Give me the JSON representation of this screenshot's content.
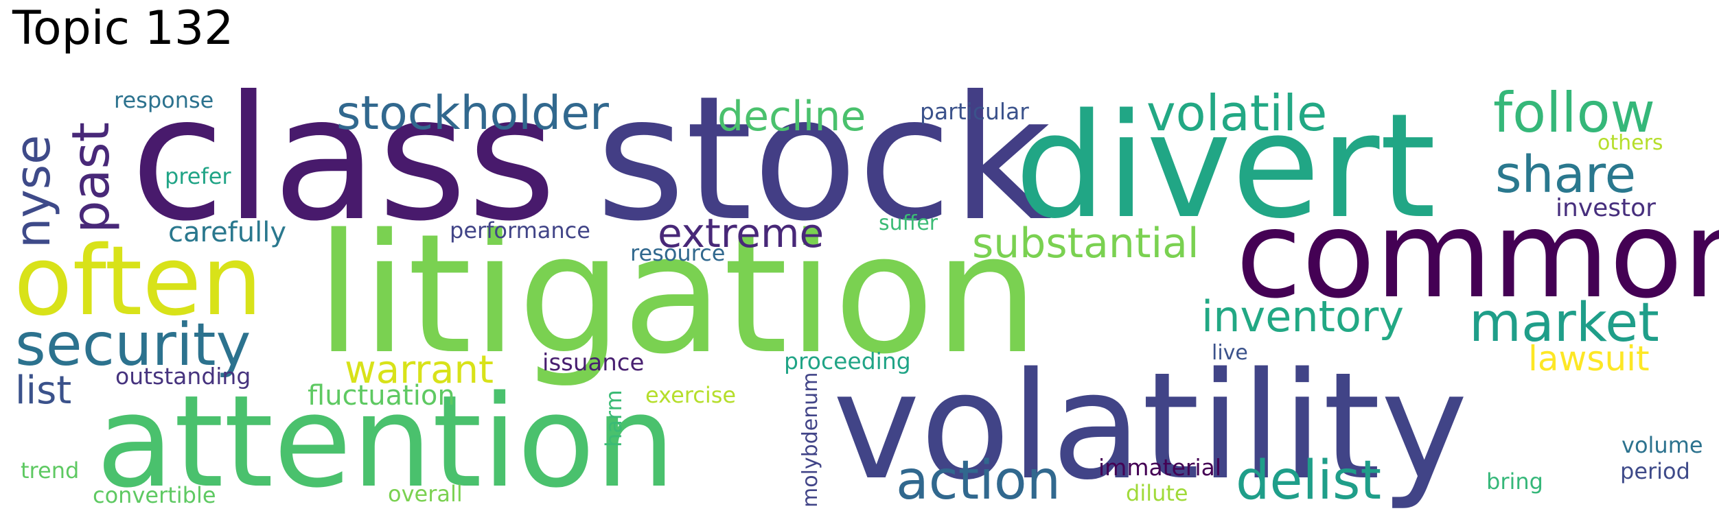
{
  "title": "Topic 132",
  "words": [
    {
      "text": "class",
      "color": "#481a6c"
    },
    {
      "text": "stock",
      "color": "#433e85"
    },
    {
      "text": "divert",
      "color": "#21a685"
    },
    {
      "text": "common",
      "color": "#440154"
    },
    {
      "text": "litigation",
      "color": "#7ad151"
    },
    {
      "text": "often",
      "color": "#d8e219"
    },
    {
      "text": "volatility",
      "color": "#414487"
    },
    {
      "text": "attention",
      "color": "#4ac16d"
    },
    {
      "text": "stockholder",
      "color": "#31688e"
    },
    {
      "text": "volatile",
      "color": "#22a884"
    },
    {
      "text": "follow",
      "color": "#35b779"
    },
    {
      "text": "decline",
      "color": "#4ac16d"
    },
    {
      "text": "share",
      "color": "#2a788e"
    },
    {
      "text": "past",
      "color": "#482878"
    },
    {
      "text": "nyse",
      "color": "#3e4a89"
    },
    {
      "text": "extreme",
      "color": "#482878"
    },
    {
      "text": "substantial",
      "color": "#7ad151"
    },
    {
      "text": "security",
      "color": "#2c728e"
    },
    {
      "text": "inventory",
      "color": "#22a884"
    },
    {
      "text": "market",
      "color": "#1f9e89"
    },
    {
      "text": "action",
      "color": "#31688e"
    },
    {
      "text": "delist",
      "color": "#1f9e89"
    },
    {
      "text": "warrant",
      "color": "#d8e219"
    },
    {
      "text": "lawsuit",
      "color": "#fde725"
    },
    {
      "text": "list",
      "color": "#3b528b"
    },
    {
      "text": "fluctuation",
      "color": "#5ec962"
    },
    {
      "text": "carefully",
      "color": "#2a788e"
    },
    {
      "text": "investor",
      "color": "#472f7d"
    },
    {
      "text": "response",
      "color": "#2c728e"
    },
    {
      "text": "prefer",
      "color": "#20a486"
    },
    {
      "text": "particular",
      "color": "#3b528b"
    },
    {
      "text": "others",
      "color": "#b5de2b"
    },
    {
      "text": "performance",
      "color": "#414487"
    },
    {
      "text": "resource",
      "color": "#31688e"
    },
    {
      "text": "suffer",
      "color": "#3bbb75"
    },
    {
      "text": "issuance",
      "color": "#481f70"
    },
    {
      "text": "proceeding",
      "color": "#20a486"
    },
    {
      "text": "outstanding",
      "color": "#46337e"
    },
    {
      "text": "exercise",
      "color": "#b5de2b"
    },
    {
      "text": "harm",
      "color": "#3bbb75"
    },
    {
      "text": "molybdenum",
      "color": "#414487"
    },
    {
      "text": "live",
      "color": "#3b528b"
    },
    {
      "text": "immaterial",
      "color": "#440154"
    },
    {
      "text": "dilute",
      "color": "#a0da39"
    },
    {
      "text": "trend",
      "color": "#5ec962"
    },
    {
      "text": "convertible",
      "color": "#5ec962"
    },
    {
      "text": "overall",
      "color": "#7ad151"
    },
    {
      "text": "bring",
      "color": "#35b779"
    },
    {
      "text": "volume",
      "color": "#2c728e"
    },
    {
      "text": "period",
      "color": "#3e4a89"
    }
  ]
}
